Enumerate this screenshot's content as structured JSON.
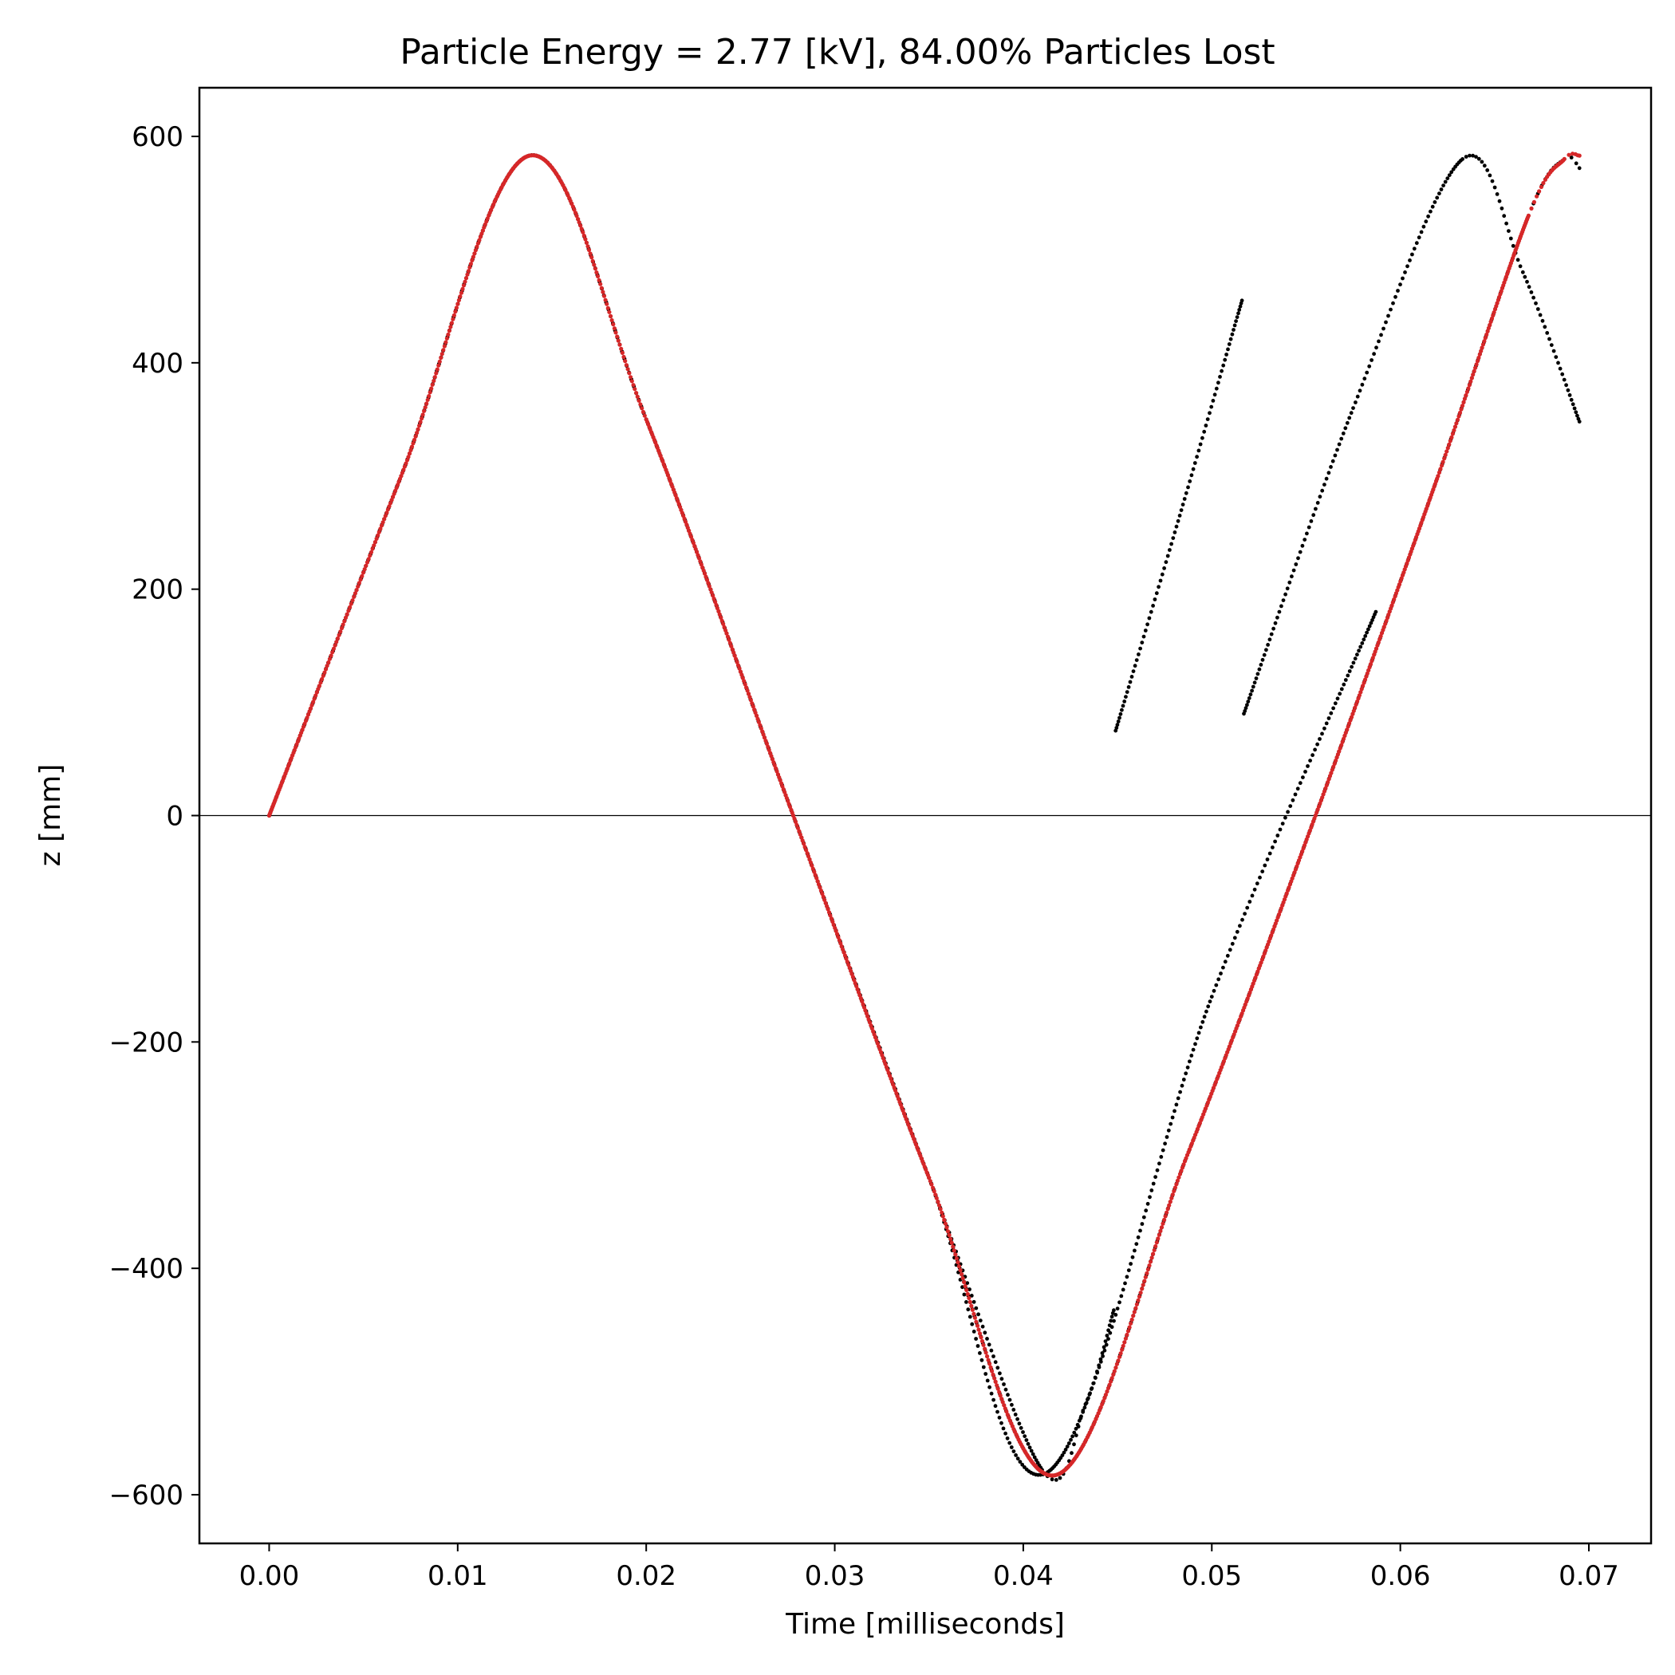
{
  "chart_data": {
    "type": "scatter",
    "title": "Particle Energy = 2.77 [kV], 84.00% Particles Lost",
    "xlabel": "Time [milliseconds]",
    "ylabel": "z [mm]",
    "xlim": [
      -0.0037,
      0.0733
    ],
    "ylim": [
      -643,
      643
    ],
    "xticks": [
      0.0,
      0.01,
      0.02,
      0.03,
      0.04,
      0.05,
      0.06,
      0.07
    ],
    "xtick_labels": [
      "0.00",
      "0.01",
      "0.02",
      "0.03",
      "0.04",
      "0.05",
      "0.06",
      "0.07"
    ],
    "yticks": [
      -600,
      -400,
      -200,
      0,
      200,
      400,
      600
    ],
    "ytick_labels": [
      "−600",
      "−400",
      "−200",
      "0",
      "200",
      "400",
      "600"
    ],
    "grid": false,
    "zero_line": true,
    "colors": {
      "lost_particles": "#000000",
      "surviving_particle": "#d62728",
      "zero_line": "#000000"
    },
    "series": [
      {
        "marker": "dot",
        "color": "#000000",
        "x": [
          0.0,
          0.007,
          0.0138,
          0.02,
          0.0278,
          0.035,
          0.041,
          0.0433,
          0.0448
        ],
        "y": [
          0,
          300,
          583,
          350,
          0,
          -320,
          -578,
          -520,
          -437
        ]
      },
      {
        "marker": "dot",
        "color": "#000000",
        "x": [
          0.0,
          0.007,
          0.0138,
          0.02,
          0.0278,
          0.035,
          0.0413,
          0.05,
          0.0587
        ],
        "y": [
          0,
          300,
          583,
          350,
          0,
          -320,
          -580,
          -160,
          180
        ]
      },
      {
        "marker": "dot",
        "color": "#000000",
        "x": [
          0.0449,
          0.0483,
          0.0516
        ],
        "y": [
          75,
          265,
          455
        ]
      },
      {
        "marker": "dot",
        "color": "#000000",
        "x": [
          0.0517,
          0.0575,
          0.0633,
          0.0665,
          0.0695
        ],
        "y": [
          90,
          360,
          580,
          480,
          348
        ]
      },
      {
        "marker": "dot",
        "color": "#000000",
        "x": [
          0.0,
          0.007,
          0.0138,
          0.02,
          0.0278,
          0.035,
          0.0416,
          0.0487,
          0.0555,
          0.062,
          0.0668,
          0.0687,
          0.0695
        ],
        "y": [
          0,
          300,
          583,
          350,
          0,
          -320,
          -583,
          -300,
          0,
          300,
          530,
          580,
          572
        ]
      },
      {
        "marker": "dot",
        "color": "#d62728",
        "x": [
          0.0,
          0.007,
          0.0138,
          0.02,
          0.0278,
          0.035,
          0.0416,
          0.0487,
          0.0555,
          0.062,
          0.0668,
          0.0687,
          0.0695
        ],
        "y": [
          0,
          300,
          583,
          350,
          0,
          -320,
          -583,
          -300,
          0,
          300,
          530,
          580,
          583
        ]
      }
    ]
  }
}
